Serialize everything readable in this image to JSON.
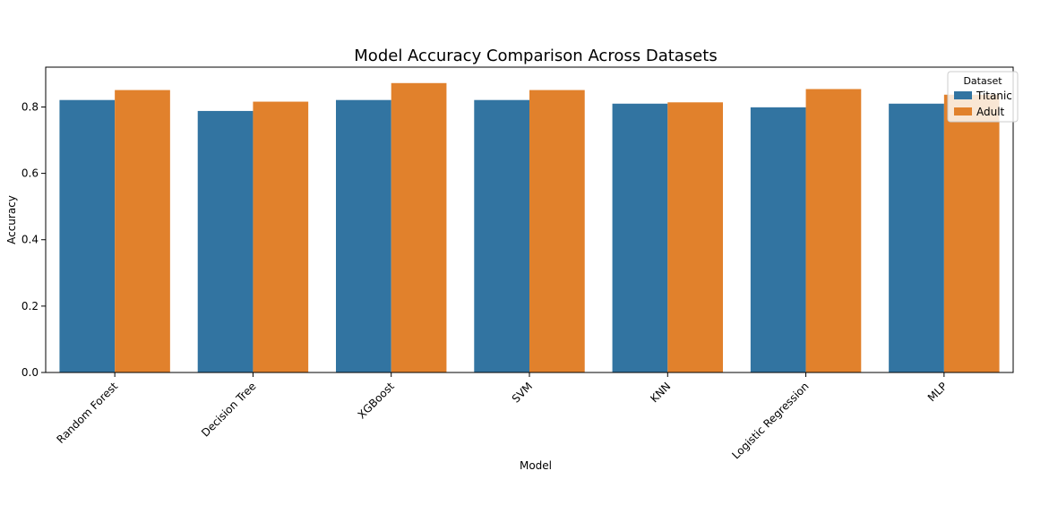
{
  "chart_data": {
    "type": "bar",
    "title": "Model Accuracy Comparison Across Datasets",
    "xlabel": "Model",
    "ylabel": "Accuracy",
    "ylim": [
      0,
      0.92
    ],
    "yticks": [
      0.0,
      0.2,
      0.4,
      0.6,
      0.8
    ],
    "ytick_labels": [
      "0.0",
      "0.2",
      "0.4",
      "0.6",
      "0.8"
    ],
    "grid": false,
    "legend": {
      "title": "Dataset",
      "placement": "top-right"
    },
    "categories": [
      "Random Forest",
      "Decision Tree",
      "XGBoost",
      "SVM",
      "KNN",
      "Logistic Regression",
      "MLP"
    ],
    "series": [
      {
        "name": "Titanic",
        "color": "#3274a1",
        "values": [
          0.821,
          0.788,
          0.821,
          0.821,
          0.81,
          0.799,
          0.81
        ]
      },
      {
        "name": "Adult",
        "color": "#e1812c",
        "values": [
          0.851,
          0.816,
          0.872,
          0.851,
          0.814,
          0.854,
          0.837
        ]
      }
    ]
  }
}
